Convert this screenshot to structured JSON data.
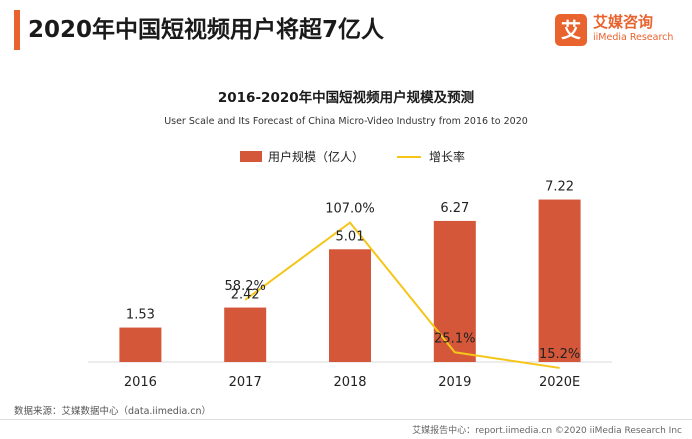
{
  "page_title": "2020年中国短视频用户将超7亿人",
  "brand": {
    "logo_char": "艾",
    "name_cn": "艾媒咨询",
    "name_en": "iiMedia Research"
  },
  "source": "数据来源：艾媒数据中心（data.iimedia.cn）",
  "footer": "艾媒报告中心：report.iimedia.cn  ©2020  iiMedia Research  Inc",
  "colors": {
    "accent": "#e8632e",
    "bar": "#d4573a",
    "line": "#f5c518"
  },
  "chart_data": {
    "type": "bar",
    "title": "2016-2020年中国短视频用户规模及预测",
    "subtitle": "User Scale and Its Forecast of China Micro-Video Industry from 2016 to 2020",
    "categories": [
      "2016",
      "2017",
      "2018",
      "2019",
      "2020E"
    ],
    "series": [
      {
        "name": "用户规模（亿人）",
        "type": "bar",
        "values": [
          1.53,
          2.42,
          5.01,
          6.27,
          7.22
        ],
        "labels": [
          "1.53",
          "2.42",
          "5.01",
          "6.27",
          "7.22"
        ]
      },
      {
        "name": "增长率",
        "type": "line",
        "values": [
          null,
          58.2,
          107.0,
          25.1,
          15.2
        ],
        "labels": [
          "",
          "58.2%",
          "107.0%",
          "25.1%",
          "15.2%"
        ]
      }
    ],
    "ylim": [
      0,
      8
    ],
    "y2lim": [
      0,
      120
    ],
    "legend": "top-center",
    "grid": false
  }
}
